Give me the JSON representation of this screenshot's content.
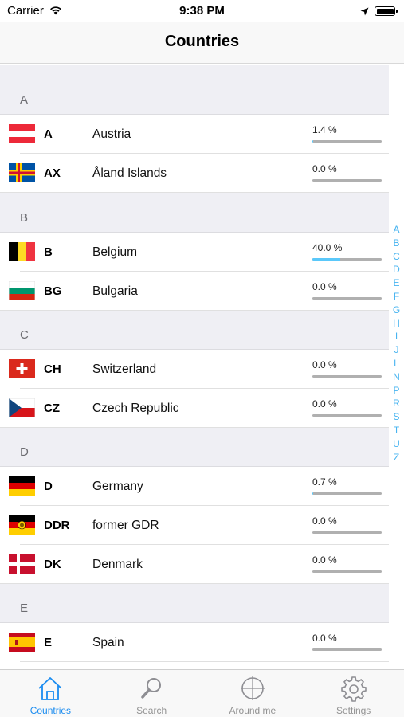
{
  "status_bar": {
    "carrier": "Carrier",
    "time": "9:38 PM"
  },
  "nav": {
    "title": "Countries"
  },
  "sections": [
    {
      "letter": "A",
      "rows": [
        {
          "code": "A",
          "name": "Austria",
          "percent_label": "1.4 %",
          "percent": 1.4,
          "flag": "austria-flag"
        },
        {
          "code": "AX",
          "name": "Åland Islands",
          "percent_label": "0.0 %",
          "percent": 0.0,
          "flag": "aland-flag"
        }
      ]
    },
    {
      "letter": "B",
      "rows": [
        {
          "code": "B",
          "name": "Belgium",
          "percent_label": "40.0 %",
          "percent": 40.0,
          "flag": "belgium-flag"
        },
        {
          "code": "BG",
          "name": "Bulgaria",
          "percent_label": "0.0 %",
          "percent": 0.0,
          "flag": "bulgaria-flag"
        }
      ]
    },
    {
      "letter": "C",
      "rows": [
        {
          "code": "CH",
          "name": "Switzerland",
          "percent_label": "0.0 %",
          "percent": 0.0,
          "flag": "switzerland-flag"
        },
        {
          "code": "CZ",
          "name": "Czech Republic",
          "percent_label": "0.0 %",
          "percent": 0.0,
          "flag": "czech-flag"
        }
      ]
    },
    {
      "letter": "D",
      "rows": [
        {
          "code": "D",
          "name": "Germany",
          "percent_label": "0.7 %",
          "percent": 0.7,
          "flag": "germany-flag"
        },
        {
          "code": "DDR",
          "name": "former GDR",
          "percent_label": "0.0 %",
          "percent": 0.0,
          "flag": "gdr-flag"
        },
        {
          "code": "DK",
          "name": "Denmark",
          "percent_label": "0.0 %",
          "percent": 0.0,
          "flag": "denmark-flag"
        }
      ]
    },
    {
      "letter": "E",
      "rows": [
        {
          "code": "E",
          "name": "Spain",
          "percent_label": "0.0 %",
          "percent": 0.0,
          "flag": "spain-flag"
        }
      ]
    }
  ],
  "index_letters": [
    "A",
    "B",
    "C",
    "D",
    "E",
    "F",
    "G",
    "H",
    "I",
    "J",
    "L",
    "N",
    "P",
    "R",
    "S",
    "T",
    "U",
    "Z"
  ],
  "tabs": [
    {
      "label": "Countries",
      "icon": "house-icon",
      "active": true
    },
    {
      "label": "Search",
      "icon": "magnifier-icon",
      "active": false
    },
    {
      "label": "Around me",
      "icon": "crosshair-icon",
      "active": false
    },
    {
      "label": "Settings",
      "icon": "gear-icon",
      "active": false
    }
  ],
  "colors": {
    "accent": "#1a8cf0",
    "progress": "#5ac8fa",
    "index": "#48b4f0"
  }
}
